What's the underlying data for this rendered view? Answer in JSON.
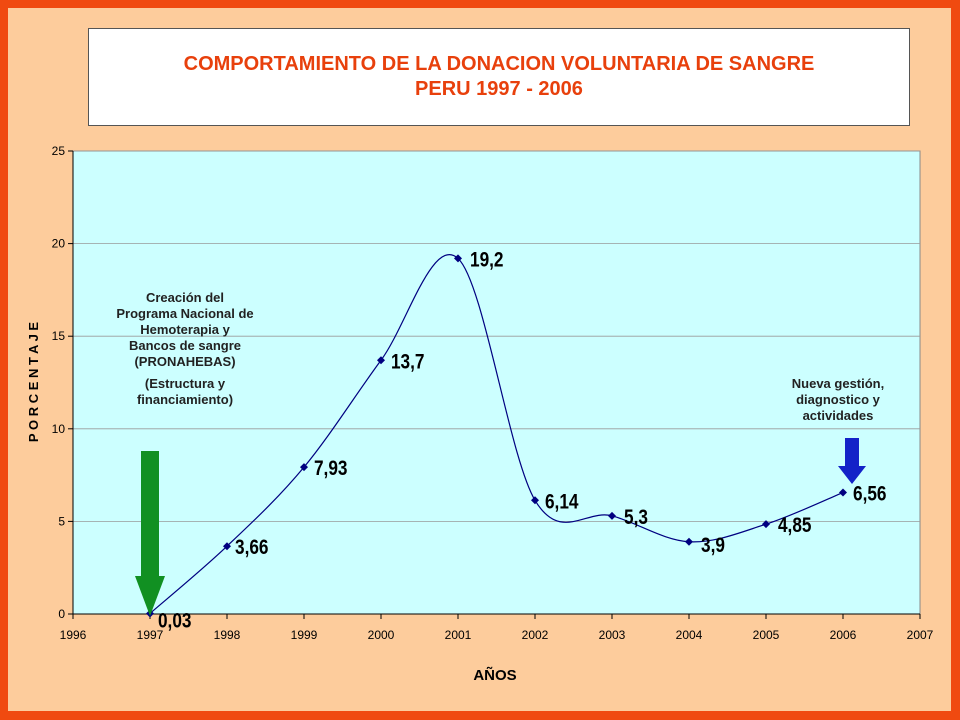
{
  "colors": {
    "frame": "#f04a10",
    "background": "#fdcc9c",
    "plot_area": "#ccffff",
    "title": "#e8400c",
    "line": "#000080",
    "marker": "#000080",
    "arrow_green": "#119022",
    "arrow_blue": "#1322c8"
  },
  "icons": {
    "arrow_1997": "down-arrow-green-icon",
    "arrow_2006": "down-arrow-blue-icon"
  },
  "chart_data": {
    "type": "line",
    "title": "COMPORTAMIENTO DE LA DONACION VOLUNTARIA DE SANGRE",
    "subtitle": "PERU 1997 - 2006",
    "xlabel": "AÑOS",
    "ylabel": "P O R C E N T A J E",
    "xlim": [
      1996,
      2007
    ],
    "ylim": [
      0,
      25
    ],
    "x_ticks": [
      1996,
      1997,
      1998,
      1999,
      2000,
      2001,
      2002,
      2003,
      2004,
      2005,
      2006,
      2007
    ],
    "y_ticks": [
      0,
      5,
      10,
      15,
      20,
      25
    ],
    "grid": true,
    "smooth": true,
    "legend": "none",
    "series": [
      {
        "x": [
          1997,
          1998,
          1999,
          2000,
          2001,
          2002,
          2003,
          2004,
          2005,
          2006
        ],
        "y": [
          0.03,
          3.66,
          7.93,
          13.7,
          19.2,
          6.14,
          5.3,
          3.9,
          4.85,
          6.56
        ],
        "labels": [
          "0,03",
          "3,66",
          "7,93",
          "13,7",
          "19,2",
          "6,14",
          "5,3",
          "3,9",
          "4,85",
          "6,56"
        ]
      }
    ],
    "annotations": [
      {
        "lines": [
          "Creación del",
          "Programa Nacional de",
          "Hemoterapia y",
          "Bancos de sangre",
          "(PRONAHEBAS)",
          "(Estructura y",
          "financiamiento)"
        ],
        "x": 1997
      },
      {
        "lines": [
          "Nueva gestión,",
          "diagnostico y",
          "actividades"
        ],
        "x": 2006
      }
    ]
  }
}
